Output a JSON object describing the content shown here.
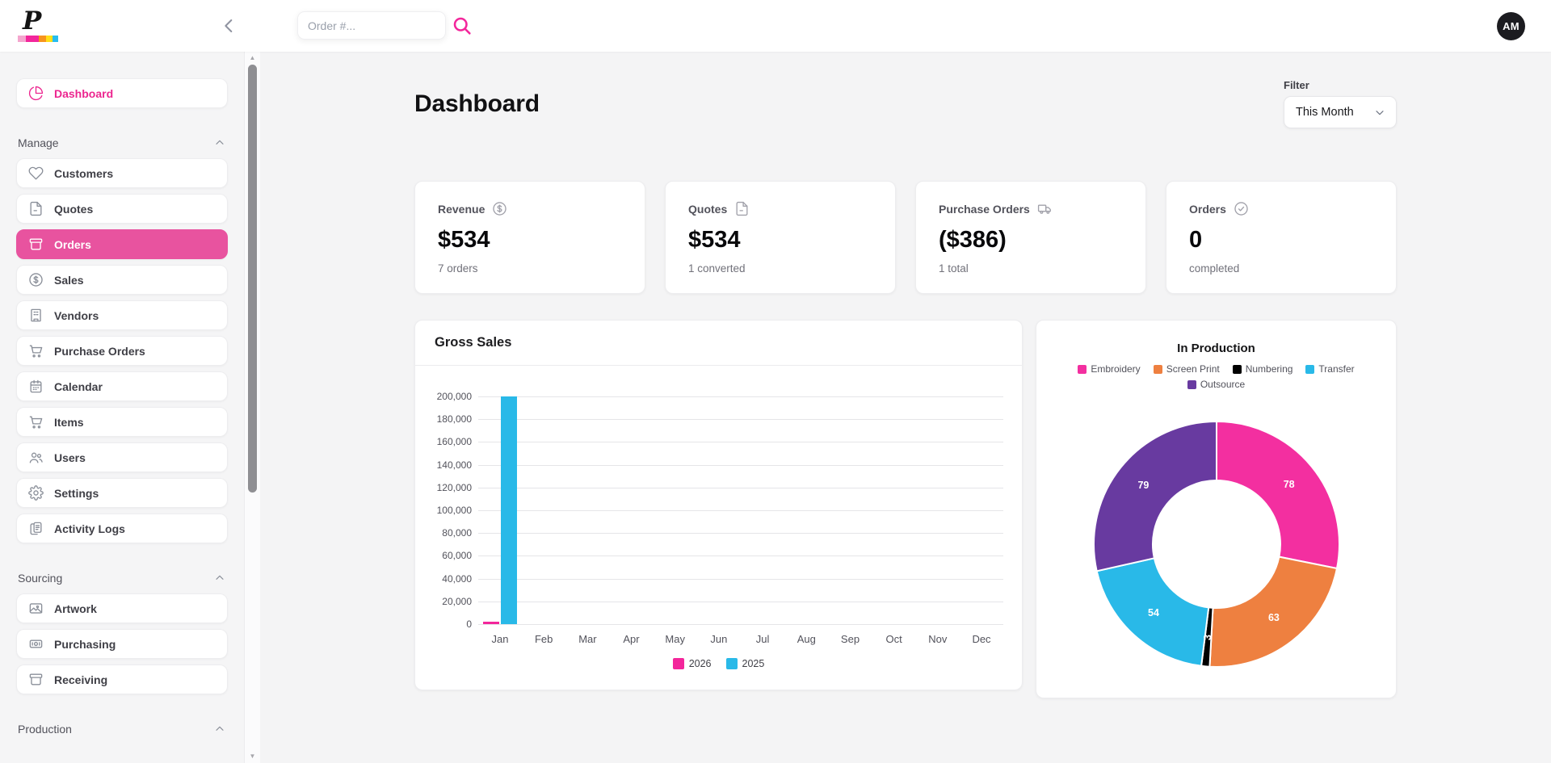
{
  "topbar": {
    "logo_letter": "P",
    "logo_colors": [
      "#F4A6CE",
      "#F3269B",
      "#F7941D",
      "#FFDE17",
      "#27BDEF"
    ],
    "search_placeholder": "Order #...",
    "avatar_initials": "AM"
  },
  "sidebar": {
    "sections": [
      {
        "items": [
          {
            "label": "Dashboard",
            "icon": "pie-chart",
            "accent": true
          }
        ]
      },
      {
        "header": "Manage",
        "items": [
          {
            "label": "Customers",
            "icon": "heart"
          },
          {
            "label": "Quotes",
            "icon": "file-text"
          },
          {
            "label": "Orders",
            "icon": "archive",
            "selected": true
          },
          {
            "label": "Sales",
            "icon": "dollar-circle"
          },
          {
            "label": "Vendors",
            "icon": "building"
          },
          {
            "label": "Purchase Orders",
            "icon": "cart"
          },
          {
            "label": "Calendar",
            "icon": "calendar"
          },
          {
            "label": "Items",
            "icon": "cart"
          },
          {
            "label": "Users",
            "icon": "users"
          },
          {
            "label": "Settings",
            "icon": "gear"
          },
          {
            "label": "Activity Logs",
            "icon": "clipboard-list"
          }
        ]
      },
      {
        "header": "Sourcing",
        "items": [
          {
            "label": "Artwork",
            "icon": "image"
          },
          {
            "label": "Purchasing",
            "icon": "banknote"
          },
          {
            "label": "Receiving",
            "icon": "archive"
          }
        ]
      },
      {
        "header": "Production",
        "items": []
      }
    ]
  },
  "main": {
    "title": "Dashboard",
    "filter": {
      "label": "Filter",
      "value": "This Month"
    },
    "stat_cards": [
      {
        "label": "Revenue",
        "icon": "dollar-circle",
        "value": "$534",
        "subtext": "7 orders"
      },
      {
        "label": "Quotes",
        "icon": "file-text",
        "value": "$534",
        "subtext": "1 converted"
      },
      {
        "label": "Purchase Orders",
        "icon": "truck",
        "value": "($386)",
        "subtext": "1 total"
      },
      {
        "label": "Orders",
        "icon": "check-circle",
        "value": "0",
        "subtext": "completed"
      }
    ]
  },
  "chart_data": [
    {
      "type": "bar",
      "title": "Gross Sales",
      "categories": [
        "Jan",
        "Feb",
        "Mar",
        "Apr",
        "May",
        "Jun",
        "Jul",
        "Aug",
        "Sep",
        "Oct",
        "Nov",
        "Dec"
      ],
      "series": [
        {
          "name": "2026",
          "color": "#F3269B",
          "values": [
            2500,
            0,
            0,
            0,
            0,
            0,
            0,
            0,
            0,
            0,
            0,
            0
          ]
        },
        {
          "name": "2025",
          "color": "#29B9E8",
          "values": [
            200000,
            0,
            0,
            0,
            0,
            0,
            0,
            0,
            0,
            0,
            0,
            0
          ]
        }
      ],
      "xlabel": "",
      "ylabel": "",
      "ylim": [
        0,
        200000
      ],
      "ytick_step": 20000,
      "grid": true,
      "legend_position": "bottom"
    },
    {
      "type": "pie",
      "donut": true,
      "inner_radius_ratio": 0.52,
      "title": "In Production",
      "slices": [
        {
          "label": "Embroidery",
          "value": 78,
          "color": "#F32FA0"
        },
        {
          "label": "Screen Print",
          "value": 63,
          "color": "#EE8040"
        },
        {
          "label": "Numbering",
          "value": 3,
          "color": "#000000"
        },
        {
          "label": "Transfer",
          "value": 54,
          "color": "#29B9E8"
        },
        {
          "label": "Outsource",
          "value": 79,
          "color": "#683AA0"
        }
      ],
      "legend_position": "top",
      "data_labels_shown": [
        78,
        63,
        3,
        54,
        79
      ]
    }
  ]
}
